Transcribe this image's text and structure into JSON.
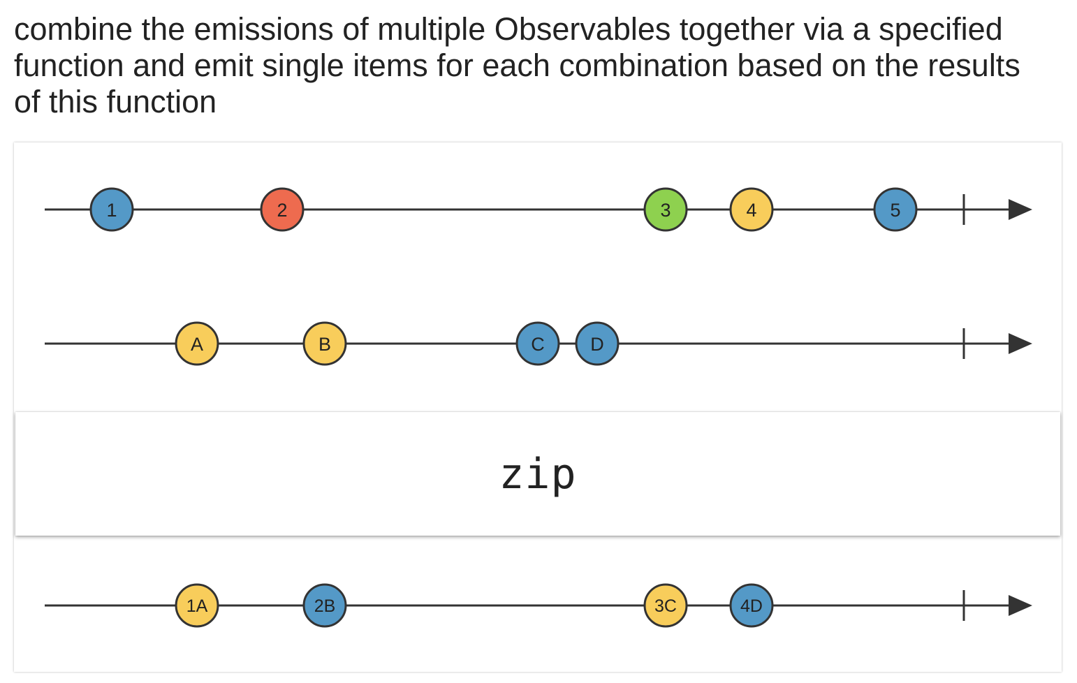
{
  "description": "combine the emissions of multiple Observables together via a specified function and emit single items for each combination based on the results of this function",
  "operator": "zip",
  "colors": {
    "blue": "#5499c7",
    "red": "#ee6b4f",
    "green": "#8ed14f",
    "yellow": "#f8cd5b",
    "line": "#333333",
    "text": "#222222"
  },
  "timelines": [
    {
      "name": "source-observable-numbers",
      "marbles": [
        {
          "label": "1",
          "color": "blue"
        },
        {
          "label": "2",
          "color": "red"
        },
        {
          "label": "3",
          "color": "green"
        },
        {
          "label": "4",
          "color": "yellow"
        },
        {
          "label": "5",
          "color": "blue"
        }
      ],
      "completes": true
    },
    {
      "name": "source-observable-letters",
      "marbles": [
        {
          "label": "A",
          "color": "yellow"
        },
        {
          "label": "B",
          "color": "yellow"
        },
        {
          "label": "C",
          "color": "blue"
        },
        {
          "label": "D",
          "color": "blue"
        }
      ],
      "completes": true
    },
    {
      "name": "result-observable",
      "marbles": [
        {
          "label": "1A",
          "color": "yellow"
        },
        {
          "label": "2B",
          "color": "blue"
        },
        {
          "label": "3C",
          "color": "yellow"
        },
        {
          "label": "4D",
          "color": "blue"
        }
      ],
      "completes": true
    }
  ]
}
